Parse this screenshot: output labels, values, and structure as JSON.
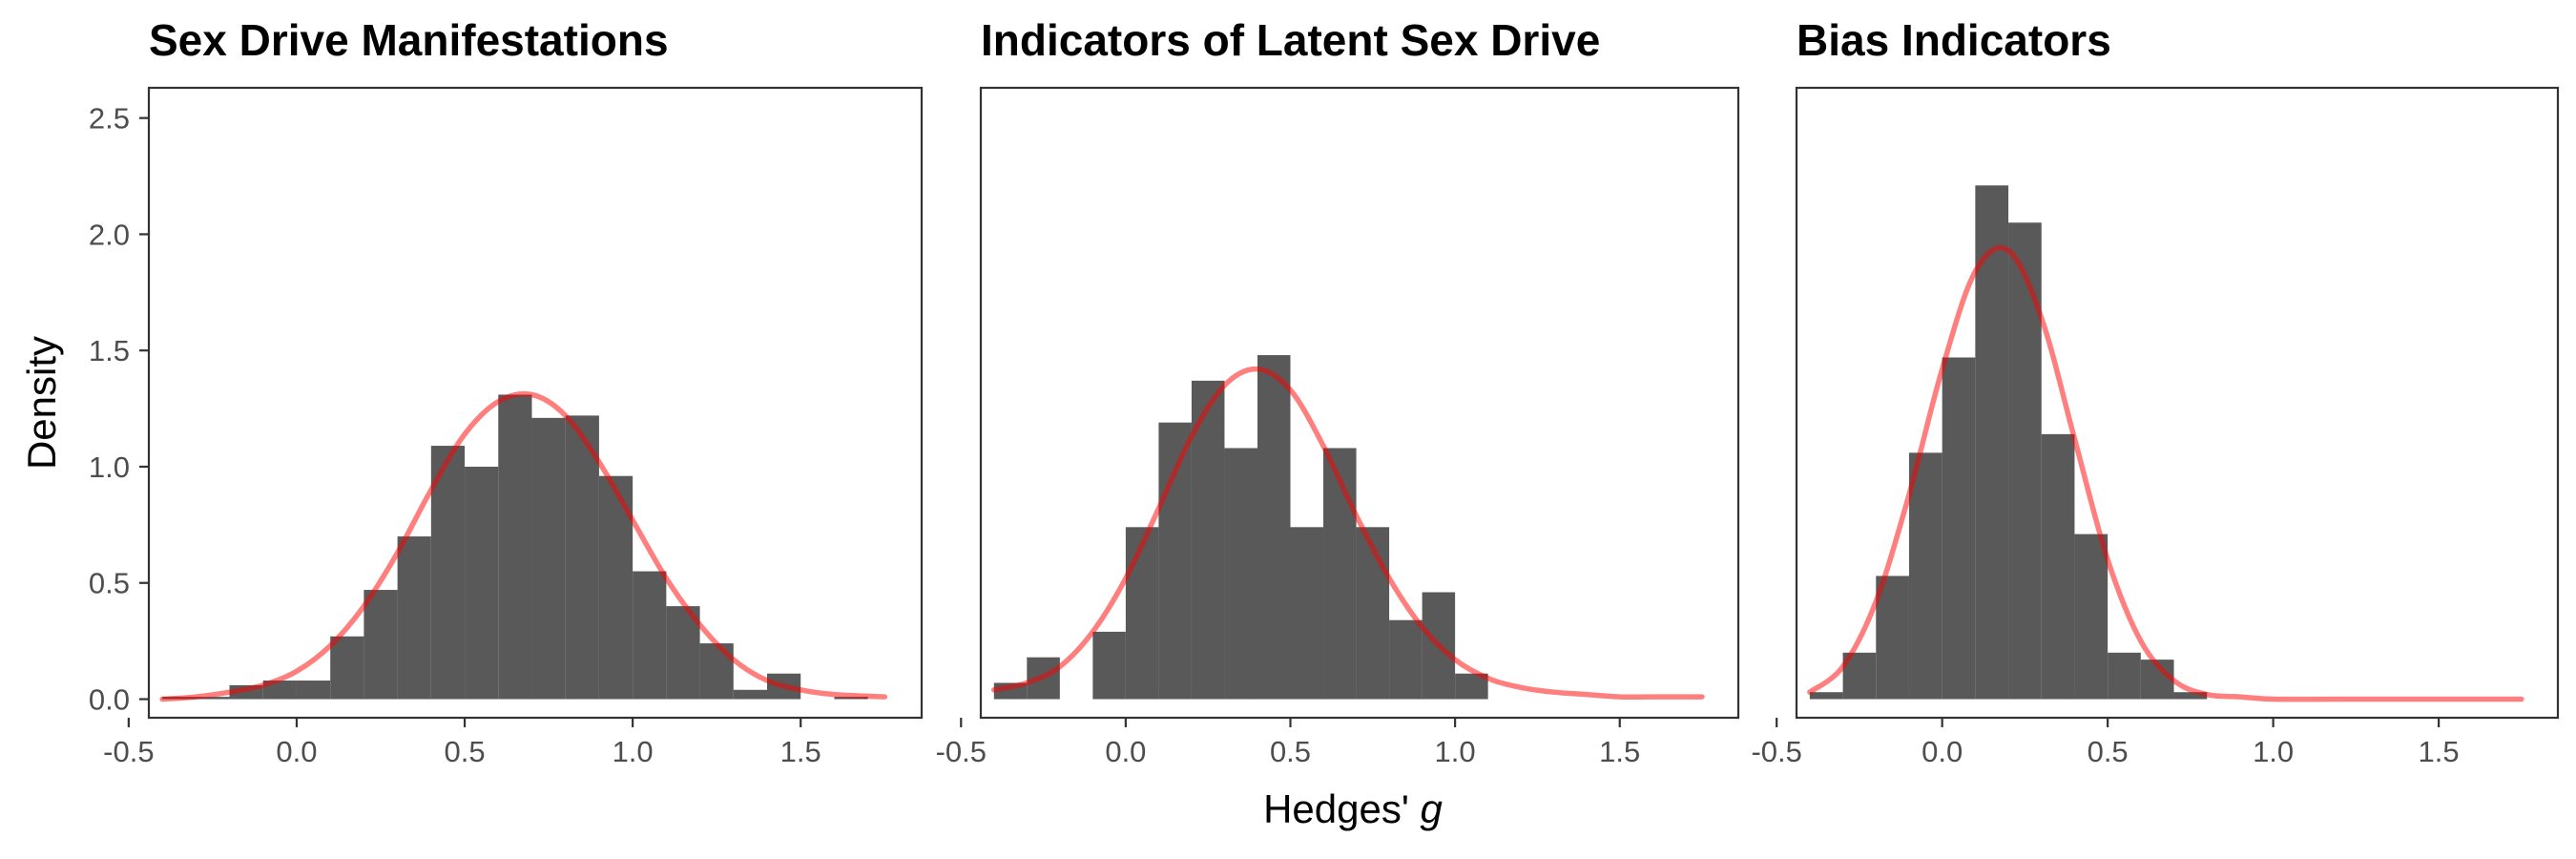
{
  "figure": {
    "ylabel": "Density",
    "xlabel_prefix": "Hedges' ",
    "xlabel_symbol": "g"
  },
  "colors": {
    "bar": "#595959",
    "curve": "#ff0000",
    "frame": "#333333",
    "tick_text": "#4d4d4d"
  },
  "chart_data": [
    {
      "type": "bar",
      "title": "Sex Drive Manifestations",
      "ylim": [
        -0.08,
        2.63
      ],
      "xlim": [
        -0.44,
        1.86
      ],
      "y_ticks": [
        0.0,
        0.5,
        1.0,
        1.5,
        2.0,
        2.5
      ],
      "y_tick_labels": [
        "0.0",
        "0.5",
        "1.0",
        "1.5",
        "2.0",
        "2.5"
      ],
      "x_ticks": [
        -0.5,
        0.0,
        0.5,
        1.0,
        1.5
      ],
      "x_tick_labels": [
        "-0.5",
        "0.0",
        "0.5",
        "1.0",
        "1.5"
      ],
      "show_y_axis": true,
      "bin_width": 0.1,
      "bins": [
        {
          "x0": -0.4,
          "density": 0.01
        },
        {
          "x0": -0.3,
          "density": 0.01
        },
        {
          "x0": -0.2,
          "density": 0.06
        },
        {
          "x0": -0.1,
          "density": 0.08
        },
        {
          "x0": 0.0,
          "density": 0.08
        },
        {
          "x0": 0.1,
          "density": 0.27
        },
        {
          "x0": 0.2,
          "density": 0.47
        },
        {
          "x0": 0.3,
          "density": 0.7
        },
        {
          "x0": 0.4,
          "density": 1.09
        },
        {
          "x0": 0.5,
          "density": 1.0
        },
        {
          "x0": 0.6,
          "density": 1.31
        },
        {
          "x0": 0.7,
          "density": 1.21
        },
        {
          "x0": 0.8,
          "density": 1.22
        },
        {
          "x0": 0.9,
          "density": 0.96
        },
        {
          "x0": 1.0,
          "density": 0.55
        },
        {
          "x0": 1.1,
          "density": 0.4
        },
        {
          "x0": 1.2,
          "density": 0.24
        },
        {
          "x0": 1.3,
          "density": 0.04
        },
        {
          "x0": 1.4,
          "density": 0.11
        },
        {
          "x0": 1.6,
          "density": 0.01
        }
      ],
      "curve": {
        "x": [
          -0.4,
          -0.3,
          -0.2,
          -0.1,
          0.0,
          0.1,
          0.2,
          0.3,
          0.4,
          0.5,
          0.6,
          0.7,
          0.8,
          0.9,
          1.0,
          1.1,
          1.2,
          1.3,
          1.4,
          1.5,
          1.6,
          1.75
        ],
        "y": [
          0.0,
          0.01,
          0.03,
          0.06,
          0.12,
          0.23,
          0.4,
          0.63,
          0.9,
          1.14,
          1.28,
          1.31,
          1.22,
          1.02,
          0.77,
          0.52,
          0.32,
          0.17,
          0.08,
          0.04,
          0.02,
          0.01
        ]
      }
    },
    {
      "type": "bar",
      "title": "Indicators of Latent Sex Drive",
      "ylim": [
        -0.08,
        2.63
      ],
      "xlim": [
        -0.44,
        1.86
      ],
      "y_ticks": [],
      "y_tick_labels": [],
      "x_ticks": [
        -0.5,
        0.0,
        0.5,
        1.0,
        1.5
      ],
      "x_tick_labels": [
        "-0.5",
        "0.0",
        "0.5",
        "1.0",
        "1.5"
      ],
      "show_y_axis": false,
      "bin_width": 0.1,
      "bins": [
        {
          "x0": -0.4,
          "density": 0.07
        },
        {
          "x0": -0.3,
          "density": 0.18
        },
        {
          "x0": -0.1,
          "density": 0.29
        },
        {
          "x0": 0.0,
          "density": 0.74
        },
        {
          "x0": 0.1,
          "density": 1.19
        },
        {
          "x0": 0.2,
          "density": 1.37
        },
        {
          "x0": 0.3,
          "density": 1.08
        },
        {
          "x0": 0.4,
          "density": 1.48
        },
        {
          "x0": 0.5,
          "density": 0.74
        },
        {
          "x0": 0.6,
          "density": 1.08
        },
        {
          "x0": 0.7,
          "density": 0.74
        },
        {
          "x0": 0.8,
          "density": 0.34
        },
        {
          "x0": 0.9,
          "density": 0.46
        },
        {
          "x0": 1.0,
          "density": 0.11
        }
      ],
      "curve": {
        "x": [
          -0.4,
          -0.3,
          -0.2,
          -0.1,
          0.0,
          0.1,
          0.2,
          0.3,
          0.4,
          0.5,
          0.6,
          0.7,
          0.8,
          0.9,
          1.0,
          1.1,
          1.2,
          1.3,
          1.4,
          1.5,
          1.6,
          1.75
        ],
        "y": [
          0.04,
          0.07,
          0.14,
          0.29,
          0.52,
          0.82,
          1.13,
          1.35,
          1.42,
          1.33,
          1.09,
          0.79,
          0.52,
          0.31,
          0.17,
          0.09,
          0.05,
          0.03,
          0.02,
          0.01,
          0.01,
          0.01
        ]
      }
    },
    {
      "type": "bar",
      "title": "Bias Indicators",
      "ylim": [
        -0.08,
        2.63
      ],
      "xlim": [
        -0.44,
        1.86
      ],
      "y_ticks": [],
      "y_tick_labels": [],
      "x_ticks": [
        -0.5,
        0.0,
        0.5,
        1.0,
        1.5
      ],
      "x_tick_labels": [
        "-0.5",
        "0.0",
        "0.5",
        "1.0",
        "1.5"
      ],
      "show_y_axis": false,
      "bin_width": 0.1,
      "bins": [
        {
          "x0": -0.4,
          "density": 0.03
        },
        {
          "x0": -0.3,
          "density": 0.2
        },
        {
          "x0": -0.2,
          "density": 0.53
        },
        {
          "x0": -0.1,
          "density": 1.06
        },
        {
          "x0": 0.0,
          "density": 1.47
        },
        {
          "x0": 0.1,
          "density": 2.21
        },
        {
          "x0": 0.2,
          "density": 2.05
        },
        {
          "x0": 0.3,
          "density": 1.14
        },
        {
          "x0": 0.4,
          "density": 0.71
        },
        {
          "x0": 0.5,
          "density": 0.2
        },
        {
          "x0": 0.6,
          "density": 0.17
        },
        {
          "x0": 0.7,
          "density": 0.03
        }
      ],
      "curve": {
        "x": [
          -0.4,
          -0.3,
          -0.2,
          -0.1,
          0.0,
          0.1,
          0.2,
          0.3,
          0.4,
          0.5,
          0.6,
          0.7,
          0.8,
          0.9,
          1.0,
          1.2,
          1.5,
          1.75
        ],
        "y": [
          0.03,
          0.14,
          0.42,
          0.88,
          1.42,
          1.84,
          1.93,
          1.64,
          1.12,
          0.6,
          0.25,
          0.08,
          0.02,
          0.01,
          0.0,
          0.0,
          0.0,
          0.0
        ]
      }
    }
  ]
}
